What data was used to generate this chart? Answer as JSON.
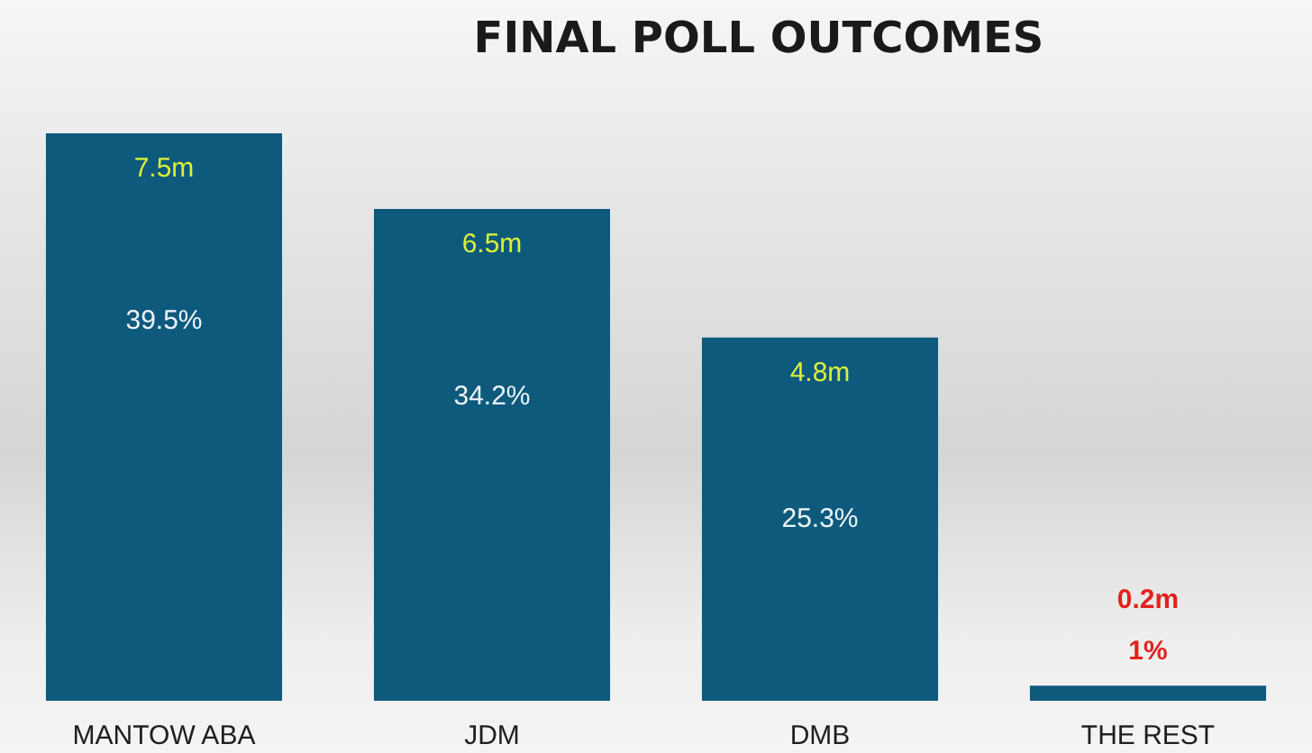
{
  "chart_data": {
    "type": "bar",
    "title": "FINAL POLL OUTCOMES",
    "categories": [
      "MANTOW ABA",
      "JDM",
      "DMB",
      "THE REST"
    ],
    "values": [
      7.5,
      6.5,
      4.8,
      0.2
    ],
    "color": "#0d5a7d",
    "value_labels": [
      "7.5m",
      "6.5m",
      "4.8m",
      "0.2m"
    ],
    "annotations": [
      "39.5%",
      "34.2%",
      "25.3%",
      "1%"
    ]
  }
}
